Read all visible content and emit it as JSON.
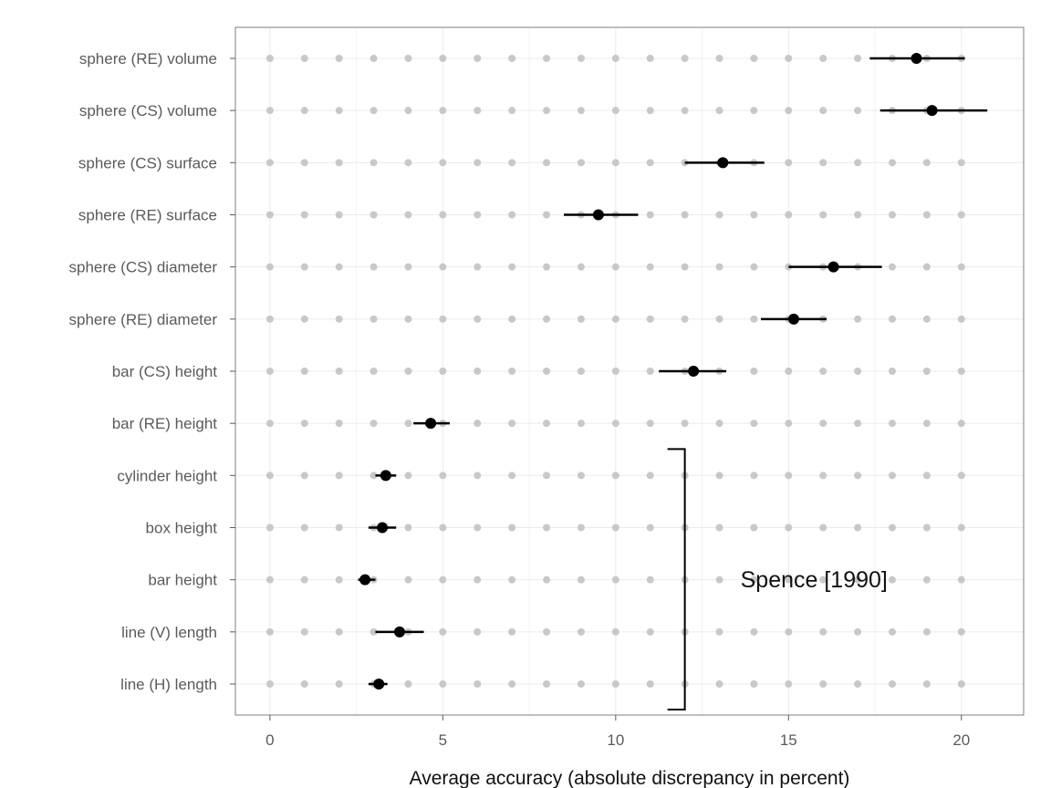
{
  "chart_data": {
    "type": "scatter",
    "subtype": "dot-with-interval",
    "title": "",
    "xlabel": "Average accuracy (absolute discrepancy in percent)",
    "ylabel": "",
    "xlim": [
      -1,
      21.8
    ],
    "xticks": [
      0,
      5,
      10,
      15,
      20
    ],
    "background_dot_x": [
      0,
      1,
      2,
      3,
      4,
      5,
      6,
      7,
      8,
      9,
      10,
      11,
      12,
      13,
      14,
      15,
      16,
      17,
      18,
      19,
      20
    ],
    "grid": true,
    "colors": {
      "point": "#000000",
      "background_dot": "#c8c8c8",
      "grid": "#ebebeb",
      "border": "#7f7f7f"
    },
    "categories": [
      "sphere (RE) volume",
      "sphere (CS) volume",
      "sphere (CS) surface",
      "sphere (RE) surface",
      "sphere (CS) diameter",
      "sphere (RE) diameter",
      "bar (CS) height",
      "bar (RE) height",
      "cylinder height",
      "box height",
      "bar height",
      "line (V) length",
      "line (H) length"
    ],
    "points": [
      {
        "category": "sphere (RE) volume",
        "mean": 18.7,
        "low": 17.35,
        "high": 20.1
      },
      {
        "category": "sphere (CS) volume",
        "mean": 19.15,
        "low": 17.65,
        "high": 20.75
      },
      {
        "category": "sphere (CS) surface",
        "mean": 13.1,
        "low": 12.0,
        "high": 14.3
      },
      {
        "category": "sphere (RE) surface",
        "mean": 9.5,
        "low": 8.5,
        "high": 10.65
      },
      {
        "category": "sphere (CS) diameter",
        "mean": 16.3,
        "low": 15.0,
        "high": 17.7
      },
      {
        "category": "sphere (RE) diameter",
        "mean": 15.15,
        "low": 14.2,
        "high": 16.1
      },
      {
        "category": "bar (CS) height",
        "mean": 12.25,
        "low": 11.25,
        "high": 13.2
      },
      {
        "category": "bar (RE) height",
        "mean": 4.65,
        "low": 4.15,
        "high": 5.2
      },
      {
        "category": "cylinder height",
        "mean": 3.35,
        "low": 3.05,
        "high": 3.65
      },
      {
        "category": "box height",
        "mean": 3.25,
        "low": 2.85,
        "high": 3.65
      },
      {
        "category": "bar height",
        "mean": 2.75,
        "low": 2.55,
        "high": 3.05
      },
      {
        "category": "line (V) length",
        "mean": 3.75,
        "low": 3.05,
        "high": 4.45
      },
      {
        "category": "line (H) length",
        "mean": 3.15,
        "low": 2.85,
        "high": 3.4
      }
    ],
    "annotation": {
      "text": "Spence [1990]",
      "bracket_x": 12.0,
      "from_category": "cylinder height",
      "to_category": "line (H) length"
    }
  }
}
